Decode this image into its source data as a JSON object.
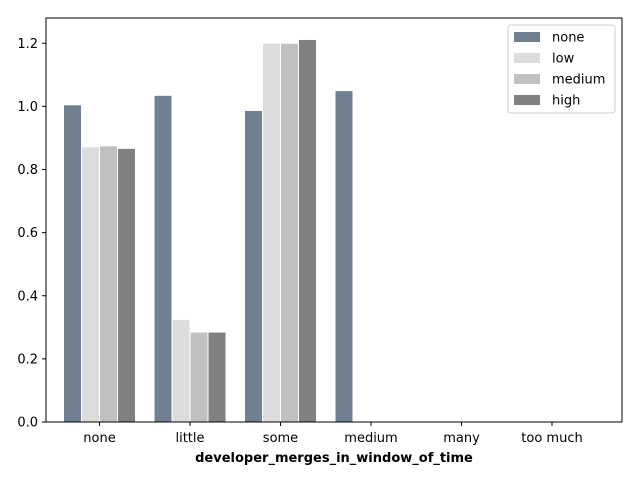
{
  "chart_data": {
    "type": "bar",
    "categories": [
      "none",
      "little",
      "some",
      "medium",
      "many",
      "too much"
    ],
    "xlabel": "developer_merges_in_window_of_time",
    "ylabel": "",
    "ylim": [
      0,
      1.28
    ],
    "yticks": [
      "0.0",
      "0.2",
      "0.4",
      "0.6",
      "0.8",
      "1.0",
      "1.2"
    ],
    "grid": false,
    "legend_position": "top-right",
    "series": [
      {
        "name": "none",
        "color": "#708090",
        "values": [
          1.005,
          1.035,
          0.987,
          1.05,
          0,
          0
        ]
      },
      {
        "name": "low",
        "color": "#dcdcdc",
        "values": [
          0.872,
          0.325,
          1.2,
          0,
          0,
          0
        ]
      },
      {
        "name": "medium",
        "color": "#c0c0c0",
        "values": [
          0.875,
          0.285,
          1.2,
          0,
          0,
          0
        ]
      },
      {
        "name": "high",
        "color": "#808080",
        "values": [
          0.867,
          0.285,
          1.212,
          0,
          0,
          0
        ]
      }
    ]
  }
}
